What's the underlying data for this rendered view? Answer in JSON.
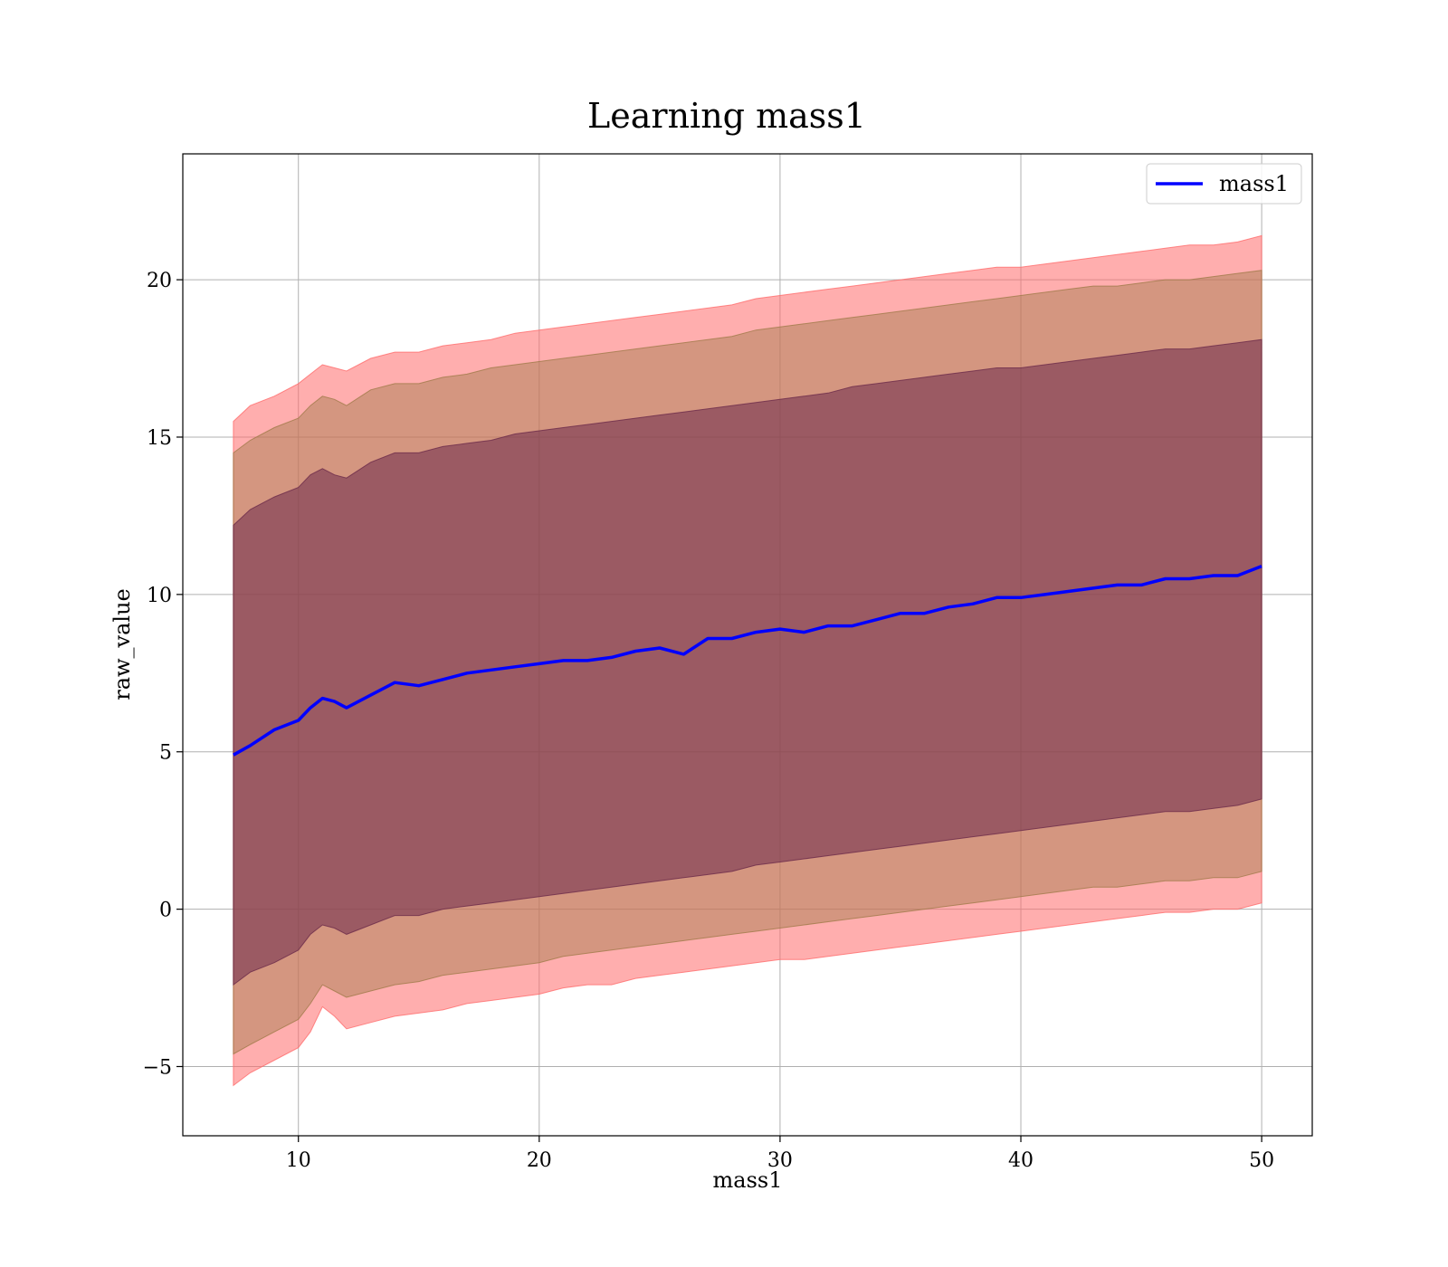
{
  "chart_data": {
    "type": "line",
    "title": "Learning mass1",
    "xlabel": "mass1",
    "ylabel": "raw_value",
    "xlim": [
      5.2,
      52.1
    ],
    "ylim": [
      -7.2,
      24.0
    ],
    "xticks": [
      10,
      20,
      30,
      40,
      50
    ],
    "yticks": [
      -5,
      0,
      5,
      10,
      15,
      20
    ],
    "grid": true,
    "legend": {
      "position": "top-right",
      "entries": [
        "mass1"
      ]
    },
    "line_color": "#0000ff",
    "series": [
      {
        "name": "mass1",
        "x": [
          7.3,
          8.0,
          9.0,
          10.0,
          10.5,
          11.0,
          11.5,
          12.0,
          13.0,
          14.0,
          15.0,
          16.0,
          17.0,
          18.0,
          19.0,
          20.0,
          21.0,
          22.0,
          23.0,
          24.0,
          25.0,
          26.0,
          27.0,
          28.0,
          29.0,
          30.0,
          31.0,
          32.0,
          33.0,
          34.0,
          35.0,
          36.0,
          37.0,
          38.0,
          39.0,
          40.0,
          41.0,
          42.0,
          43.0,
          44.0,
          45.0,
          46.0,
          47.0,
          48.0,
          49.0,
          50.0
        ],
        "values": [
          4.9,
          5.2,
          5.7,
          6.0,
          6.4,
          6.7,
          6.6,
          6.4,
          6.8,
          7.2,
          7.1,
          7.3,
          7.5,
          7.6,
          7.7,
          7.8,
          7.9,
          7.9,
          8.0,
          8.2,
          8.3,
          8.1,
          8.6,
          8.6,
          8.8,
          8.9,
          8.8,
          9.0,
          9.0,
          9.2,
          9.4,
          9.4,
          9.6,
          9.7,
          9.9,
          9.9,
          10.0,
          10.1,
          10.2,
          10.3,
          10.3,
          10.5,
          10.5,
          10.6,
          10.6,
          10.9
        ]
      }
    ],
    "bands": [
      {
        "color": "#ff6b6b",
        "opacity": 0.55,
        "upper": [
          15.5,
          16.0,
          16.3,
          16.7,
          17.0,
          17.3,
          17.2,
          17.1,
          17.5,
          17.7,
          17.7,
          17.9,
          18.0,
          18.1,
          18.3,
          18.4,
          18.5,
          18.6,
          18.7,
          18.8,
          18.9,
          19.0,
          19.1,
          19.2,
          19.4,
          19.5,
          19.6,
          19.7,
          19.8,
          19.9,
          20.0,
          20.1,
          20.2,
          20.3,
          20.4,
          20.4,
          20.5,
          20.6,
          20.7,
          20.8,
          20.9,
          21.0,
          21.1,
          21.1,
          21.2,
          21.4
        ],
        "lower": [
          -5.6,
          -5.2,
          -4.8,
          -4.4,
          -3.9,
          -3.1,
          -3.4,
          -3.8,
          -3.6,
          -3.4,
          -3.3,
          -3.2,
          -3.0,
          -2.9,
          -2.8,
          -2.7,
          -2.5,
          -2.4,
          -2.4,
          -2.2,
          -2.1,
          -2.0,
          -1.9,
          -1.8,
          -1.7,
          -1.6,
          -1.6,
          -1.5,
          -1.4,
          -1.3,
          -1.2,
          -1.1,
          -1.0,
          -0.9,
          -0.8,
          -0.7,
          -0.6,
          -0.5,
          -0.4,
          -0.3,
          -0.2,
          -0.1,
          -0.1,
          0.0,
          0.0,
          0.2
        ]
      },
      {
        "color": "#a07a4a",
        "opacity": 0.45,
        "upper": [
          14.5,
          14.9,
          15.3,
          15.6,
          16.0,
          16.3,
          16.2,
          16.0,
          16.5,
          16.7,
          16.7,
          16.9,
          17.0,
          17.2,
          17.3,
          17.4,
          17.5,
          17.6,
          17.7,
          17.8,
          17.9,
          18.0,
          18.1,
          18.2,
          18.4,
          18.5,
          18.6,
          18.7,
          18.8,
          18.9,
          19.0,
          19.1,
          19.2,
          19.3,
          19.4,
          19.5,
          19.6,
          19.7,
          19.8,
          19.8,
          19.9,
          20.0,
          20.0,
          20.1,
          20.2,
          20.3
        ],
        "lower": [
          -4.6,
          -4.3,
          -3.9,
          -3.5,
          -3.0,
          -2.4,
          -2.6,
          -2.8,
          -2.6,
          -2.4,
          -2.3,
          -2.1,
          -2.0,
          -1.9,
          -1.8,
          -1.7,
          -1.5,
          -1.4,
          -1.3,
          -1.2,
          -1.1,
          -1.0,
          -0.9,
          -0.8,
          -0.7,
          -0.6,
          -0.5,
          -0.4,
          -0.3,
          -0.2,
          -0.1,
          0.0,
          0.1,
          0.2,
          0.3,
          0.4,
          0.5,
          0.6,
          0.7,
          0.7,
          0.8,
          0.9,
          0.9,
          1.0,
          1.0,
          1.2
        ]
      },
      {
        "color": "#6b2a4a",
        "opacity": 0.55,
        "upper": [
          12.2,
          12.7,
          13.1,
          13.4,
          13.8,
          14.0,
          13.8,
          13.7,
          14.2,
          14.5,
          14.5,
          14.7,
          14.8,
          14.9,
          15.1,
          15.2,
          15.3,
          15.4,
          15.5,
          15.6,
          15.7,
          15.8,
          15.9,
          16.0,
          16.1,
          16.2,
          16.3,
          16.4,
          16.6,
          16.7,
          16.8,
          16.9,
          17.0,
          17.1,
          17.2,
          17.2,
          17.3,
          17.4,
          17.5,
          17.6,
          17.7,
          17.8,
          17.8,
          17.9,
          18.0,
          18.1
        ],
        "lower": [
          -2.4,
          -2.0,
          -1.7,
          -1.3,
          -0.8,
          -0.5,
          -0.6,
          -0.8,
          -0.5,
          -0.2,
          -0.2,
          0.0,
          0.1,
          0.2,
          0.3,
          0.4,
          0.5,
          0.6,
          0.7,
          0.8,
          0.9,
          1.0,
          1.1,
          1.2,
          1.4,
          1.5,
          1.6,
          1.7,
          1.8,
          1.9,
          2.0,
          2.1,
          2.2,
          2.3,
          2.4,
          2.5,
          2.6,
          2.7,
          2.8,
          2.9,
          3.0,
          3.1,
          3.1,
          3.2,
          3.3,
          3.5
        ]
      }
    ]
  }
}
